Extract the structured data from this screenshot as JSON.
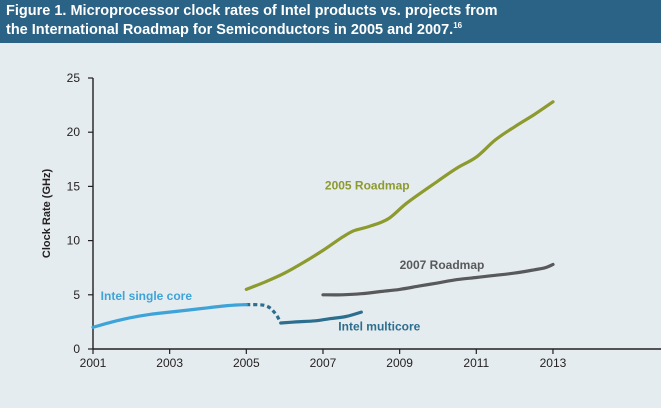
{
  "title": {
    "line1": "Figure 1. Microprocessor clock rates of Intel products vs. projects from",
    "line2": "the International Roadmap for Semiconductors in 2005 and 2007.",
    "footnote": "16"
  },
  "colors": {
    "header_bg": "#2a6386",
    "plot_bg": "#e5ecef",
    "roadmap_2005": "#8c9a2e",
    "roadmap_2007": "#58595b",
    "intel_single_core": "#3da3d8",
    "intel_multicore": "#2c6e8e"
  },
  "chart_data": {
    "type": "line",
    "ylabel": "Clock Rate (GHz)",
    "xlabel": "",
    "xlim": [
      2001,
      2017
    ],
    "ylim": [
      0,
      25
    ],
    "x_ticks": [
      "2001",
      "2003",
      "2005",
      "2007",
      "2009",
      "2011",
      "2013"
    ],
    "y_ticks": [
      "0",
      "5",
      "10",
      "15",
      "20",
      "25"
    ],
    "grid": false,
    "series": [
      {
        "name": "2005 Roadmap",
        "color": "#8c9a2e",
        "x": [
          2005.0,
          2005.5,
          2006.0,
          2006.5,
          2007.0,
          2007.5,
          2007.8,
          2008.2,
          2008.7,
          2009.2,
          2010.0,
          2010.5,
          2011.0,
          2011.5,
          2012.0,
          2012.5,
          2013.0
        ],
        "y": [
          5.5,
          6.2,
          7.0,
          8.0,
          9.1,
          10.3,
          10.9,
          11.3,
          12.0,
          13.5,
          15.5,
          16.7,
          17.7,
          19.3,
          20.5,
          21.6,
          22.8
        ]
      },
      {
        "name": "2007 Roadmap",
        "color": "#58595b",
        "x": [
          2007.0,
          2007.5,
          2008.0,
          2008.5,
          2009.0,
          2009.5,
          2010.0,
          2010.5,
          2011.0,
          2011.5,
          2012.0,
          2012.5,
          2012.8,
          2013.0
        ],
        "y": [
          5.0,
          5.0,
          5.1,
          5.3,
          5.5,
          5.8,
          6.1,
          6.4,
          6.6,
          6.8,
          7.0,
          7.3,
          7.5,
          7.8
        ]
      },
      {
        "name": "Intel single core",
        "color": "#3da3d8",
        "x": [
          2001.0,
          2001.5,
          2002.0,
          2002.5,
          2003.0,
          2003.5,
          2004.0,
          2004.5,
          2005.0
        ],
        "y": [
          2.0,
          2.5,
          2.9,
          3.2,
          3.4,
          3.6,
          3.8,
          4.0,
          4.1
        ]
      },
      {
        "name": "Intel multicore",
        "color": "#2c6e8e",
        "x": [
          2005.9,
          2006.3,
          2006.8,
          2007.2,
          2007.6,
          2008.0
        ],
        "y": [
          2.4,
          2.5,
          2.6,
          2.8,
          3.0,
          3.4
        ]
      }
    ],
    "transition": {
      "color": "#2c6e8e",
      "x": [
        2005.0,
        2005.5,
        2005.75,
        2005.9
      ],
      "y": [
        4.1,
        4.0,
        3.3,
        2.4
      ]
    },
    "annotations": [
      {
        "text": "2005 Roadmap",
        "x": 2007.05,
        "y": 14.7,
        "color": "#8c9a2e"
      },
      {
        "text": "2007 Roadmap",
        "x": 2009.0,
        "y": 7.4,
        "color": "#58595b"
      },
      {
        "text": "Intel single core",
        "x": 2001.2,
        "y": 4.5,
        "color": "#3da3d8"
      },
      {
        "text": "Intel multicore",
        "x": 2007.4,
        "y": 1.7,
        "color": "#2c6e8e"
      }
    ]
  }
}
